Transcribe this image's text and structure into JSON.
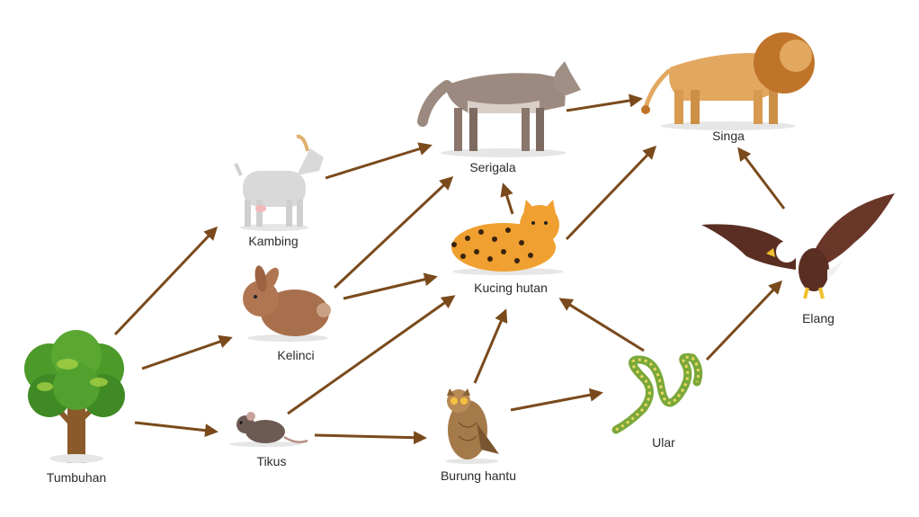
{
  "diagram": {
    "colors": {
      "arrow": "#7a4a1c",
      "label": "#2b2b2b"
    },
    "organisms": {
      "tumbuhan": {
        "label": "Tumbuhan",
        "icon": "tree-icon"
      },
      "kambing": {
        "label": "Kambing",
        "icon": "goat-icon"
      },
      "kelinci": {
        "label": "Kelinci",
        "icon": "rabbit-icon"
      },
      "tikus": {
        "label": "Tikus",
        "icon": "mouse-icon"
      },
      "serigala": {
        "label": "Serigala",
        "icon": "wolf-icon"
      },
      "kucing_hutan": {
        "label": "Kucing hutan",
        "icon": "wild-cat-icon"
      },
      "burung_hantu": {
        "label": "Burung hantu",
        "icon": "owl-icon"
      },
      "ular": {
        "label": "Ular",
        "icon": "snake-icon"
      },
      "singa": {
        "label": "Singa",
        "icon": "lion-icon"
      },
      "elang": {
        "label": "Elang",
        "icon": "eagle-icon"
      }
    },
    "links": [
      {
        "from": "tumbuhan",
        "to": "kambing"
      },
      {
        "from": "tumbuhan",
        "to": "kelinci"
      },
      {
        "from": "tumbuhan",
        "to": "tikus"
      },
      {
        "from": "kambing",
        "to": "serigala"
      },
      {
        "from": "kelinci",
        "to": "serigala"
      },
      {
        "from": "kelinci",
        "to": "kucing_hutan"
      },
      {
        "from": "tikus",
        "to": "kucing_hutan"
      },
      {
        "from": "tikus",
        "to": "burung_hantu"
      },
      {
        "from": "burung_hantu",
        "to": "kucing_hutan"
      },
      {
        "from": "burung_hantu",
        "to": "ular"
      },
      {
        "from": "ular",
        "to": "kucing_hutan"
      },
      {
        "from": "ular",
        "to": "elang"
      },
      {
        "from": "kucing_hutan",
        "to": "serigala"
      },
      {
        "from": "kucing_hutan",
        "to": "singa"
      },
      {
        "from": "serigala",
        "to": "singa"
      },
      {
        "from": "elang",
        "to": "singa"
      }
    ]
  }
}
